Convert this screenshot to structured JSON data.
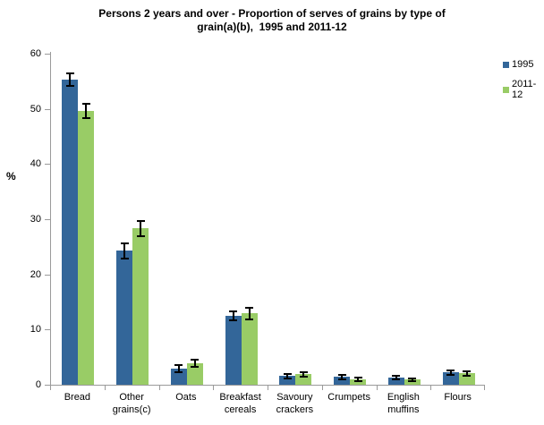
{
  "title": {
    "line1": "Persons 2 years and over - Proportion of serves of grains by type of",
    "line2": "grain(a)(b),  1995 and 2011-12"
  },
  "chart_data": {
    "type": "bar",
    "title": "Persons 2 years and over - Proportion of serves of grains by type of grain(a)(b), 1995 and 2011-12",
    "xlabel": "",
    "ylabel": "%",
    "ylim": [
      0,
      60
    ],
    "yticks": [
      0,
      10,
      20,
      30,
      40,
      50,
      60
    ],
    "grid": false,
    "legend_position": "top-right",
    "axis_color": "#9a9a9a",
    "error_bar_color": "#000000",
    "categories": [
      "Bread",
      "Other grains(c)",
      "Oats",
      "Breakfast cereals",
      "Savoury crackers",
      "Crumpets",
      "English muffins",
      "Flours"
    ],
    "series": [
      {
        "name": "1995",
        "color": "#336699",
        "values": [
          55.3,
          24.3,
          2.9,
          12.5,
          1.6,
          1.4,
          1.3,
          2.2
        ],
        "errors": [
          1.2,
          1.4,
          0.6,
          0.8,
          0.4,
          0.4,
          0.3,
          0.4
        ]
      },
      {
        "name": "2011-12",
        "color": "#99CC66",
        "values": [
          49.6,
          28.3,
          3.9,
          12.9,
          1.9,
          1.0,
          0.9,
          2.1
        ],
        "errors": [
          1.3,
          1.4,
          0.7,
          1.0,
          0.4,
          0.3,
          0.3,
          0.4
        ]
      }
    ]
  }
}
